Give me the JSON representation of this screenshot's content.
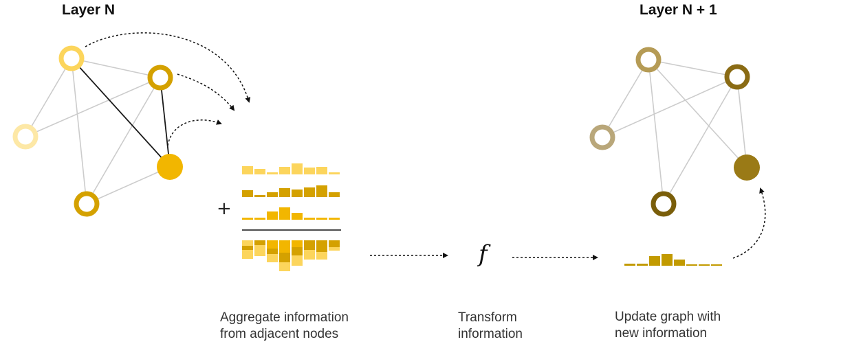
{
  "titles": {
    "left": "Layer N",
    "right": "Layer N + 1"
  },
  "symbols": {
    "plus": "+",
    "function": "f"
  },
  "captions": {
    "aggregate": [
      "Aggregate information",
      "from adjacent nodes"
    ],
    "transform": [
      "Transform",
      "information"
    ],
    "update": [
      "Update graph with",
      "new information"
    ]
  },
  "colors": {
    "edge": "#cccccc",
    "highlight_edge": "#1a1a1a",
    "node_pale": "#fde8a6",
    "node_light": "#fcd55c",
    "node_mid": "#d4a100",
    "node_target": "#f2b600",
    "node_tan": "#b9a77a",
    "node_dark_gold": "#9a7a16",
    "node_brown": "#7a5e0a",
    "node_dark_tan": "#8a6b14",
    "bar_light": "#fcd55c",
    "bar_mid": "#d4a100",
    "bar_target": "#f2b600",
    "bar_output": "#c29a00"
  },
  "icons": [
    "dotted-arrow-icon",
    "function-icon",
    "plus-icon"
  ]
}
